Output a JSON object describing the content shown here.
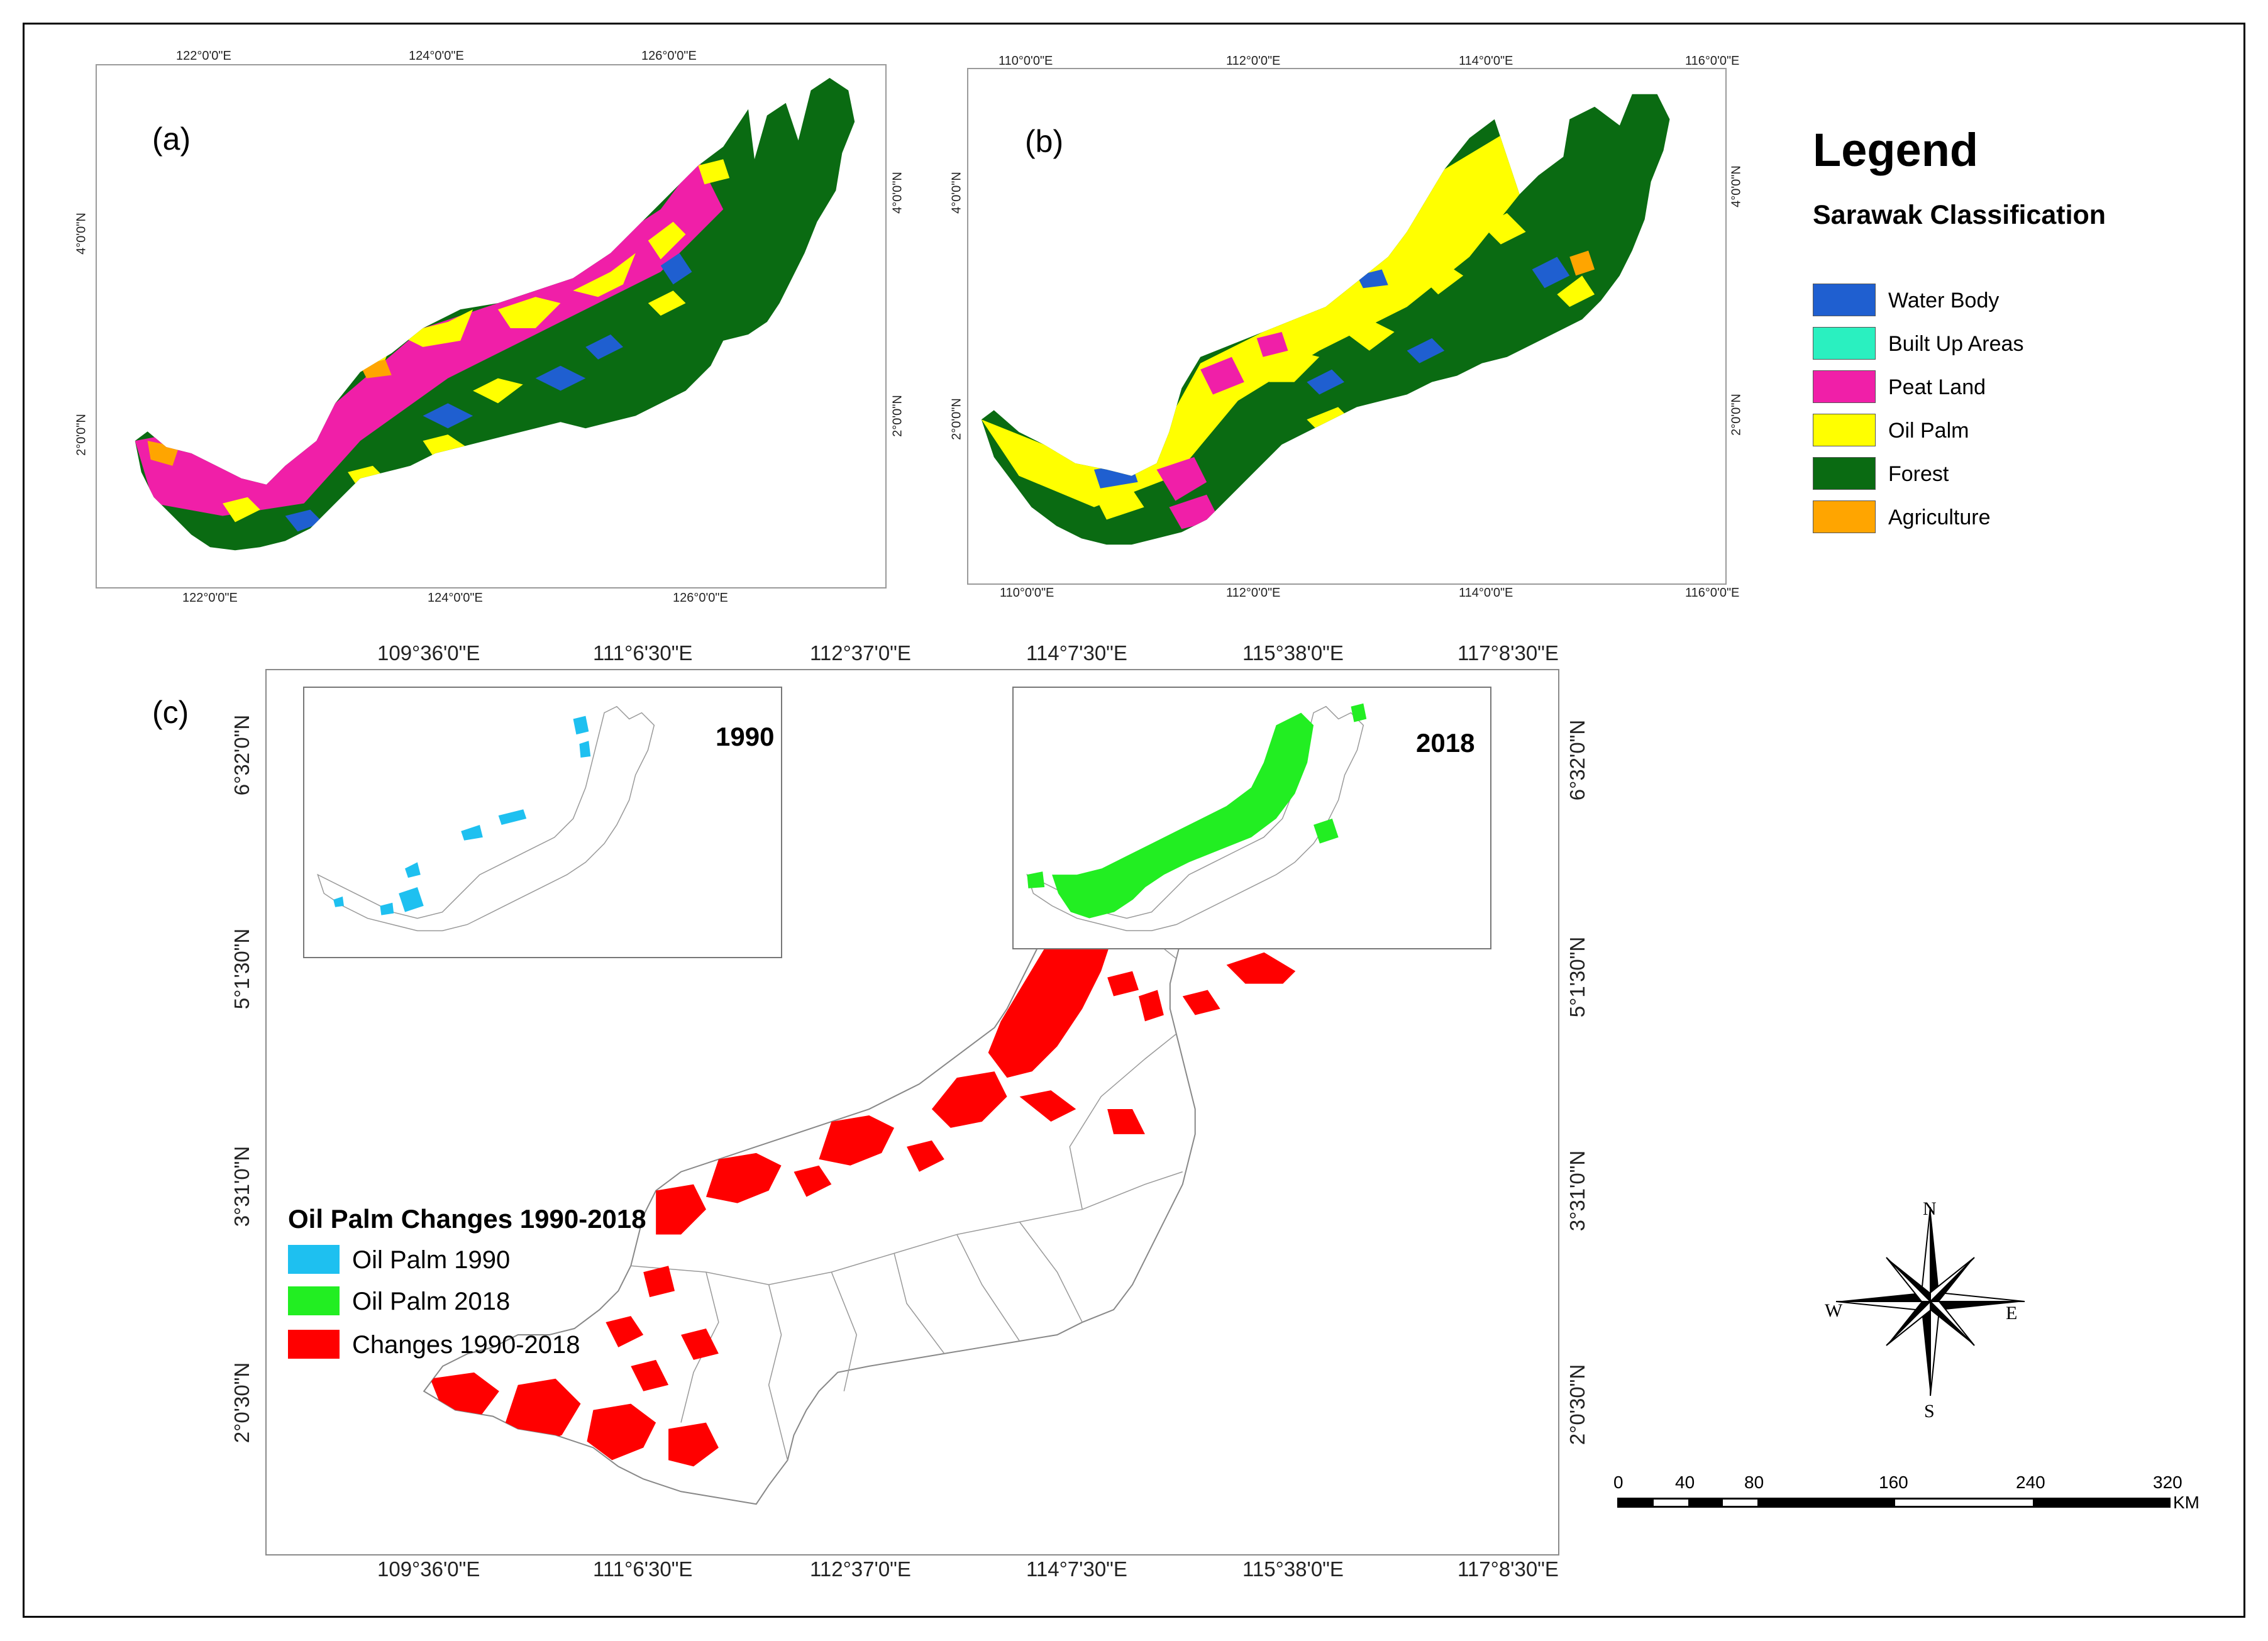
{
  "panel_a": {
    "label": "(a)",
    "top_ticks": [
      "122°0'0\"E",
      "124°0'0\"E",
      "126°0'0\"E"
    ],
    "bottom_ticks": [
      "122°0'0\"E",
      "124°0'0\"E",
      "126°0'0\"E"
    ],
    "left_ticks": [
      "4°0'0\"N",
      "2°0'0\"N"
    ],
    "right_ticks": [
      "4°0'0\"N",
      "2°0'0\"N"
    ]
  },
  "panel_b": {
    "label": "(b)",
    "top_ticks": [
      "110°0'0\"E",
      "112°0'0\"E",
      "114°0'0\"E",
      "116°0'0\"E"
    ],
    "bottom_ticks": [
      "110°0'0\"E",
      "112°0'0\"E",
      "114°0'0\"E",
      "116°0'0\"E"
    ],
    "left_ticks": [
      "4°0'0\"N",
      "2°0'0\"N"
    ],
    "right_ticks": [
      "4°0'0\"N",
      "2°0'0\"N"
    ]
  },
  "legend": {
    "title": "Legend",
    "subtitle": "Sarawak Classification",
    "items": [
      {
        "label": "Water Body",
        "color": "#1f5fd0"
      },
      {
        "label": "Built Up Areas",
        "color": "#2af0c0"
      },
      {
        "label": "Peat Land",
        "color": "#f01fa8"
      },
      {
        "label": "Oil Palm",
        "color": "#ffff00"
      },
      {
        "label": "Forest",
        "color": "#0a6b12"
      },
      {
        "label": "Agriculture",
        "color": "#ffa500"
      }
    ]
  },
  "panel_c": {
    "label": "(c)",
    "top_ticks": [
      "109°36'0\"E",
      "111°6'30\"E",
      "112°37'0\"E",
      "114°7'30\"E",
      "115°38'0\"E",
      "117°8'30\"E"
    ],
    "bottom_ticks": [
      "109°36'0\"E",
      "111°6'30\"E",
      "112°37'0\"E",
      "114°7'30\"E",
      "115°38'0\"E",
      "117°8'30\"E"
    ],
    "left_ticks": [
      "6°32'0\"N",
      "5°1'30\"N",
      "3°31'0\"N",
      "2°0'30\"N"
    ],
    "right_ticks": [
      "6°32'0\"N",
      "5°1'30\"N",
      "3°31'0\"N",
      "2°0'30\"N"
    ],
    "inset_1990": "1990",
    "inset_2018": "2018",
    "legend_title": "Oil Palm Changes 1990-2018",
    "legend_items": [
      {
        "label": "Oil Palm 1990",
        "color": "#1ec0f0"
      },
      {
        "label": "Oil Palm 2018",
        "color": "#22ee22"
      },
      {
        "label": "Changes 1990-2018",
        "color": "#ff0000"
      }
    ]
  },
  "north_arrow": {
    "n": "N",
    "s": "S",
    "e": "E",
    "w": "W"
  },
  "scale_bar": {
    "labels": [
      "0",
      "40",
      "80",
      "160",
      "240",
      "320"
    ],
    "unit": "KM"
  }
}
